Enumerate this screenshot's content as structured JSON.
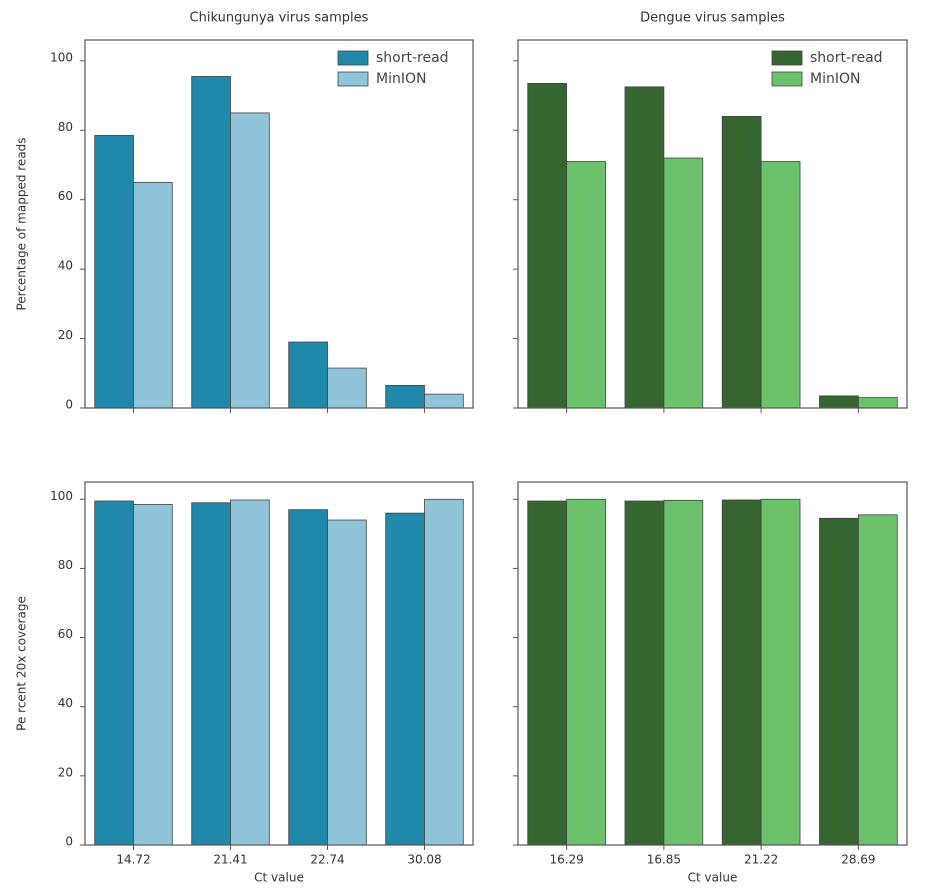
{
  "chart_data": [
    {
      "type": "bar",
      "title": "Chikungunya virus samples",
      "ylabel": "Percentage of mapped reads",
      "categories": [
        null,
        null,
        null,
        null
      ],
      "series": [
        {
          "name": "short-read",
          "color": "#1f88ab",
          "values": [
            78.5,
            95.5,
            19,
            6.5
          ]
        },
        {
          "name": "MinION",
          "color": "#8fc4d9",
          "values": [
            65,
            85,
            11.5,
            4
          ]
        }
      ],
      "ylim": [
        0,
        106
      ],
      "yticks": [
        0,
        20,
        40,
        60,
        80,
        100
      ],
      "y_tick_labels": true,
      "legend": "upper-right"
    },
    {
      "type": "bar",
      "title": "Dengue virus samples",
      "categories": [
        null,
        null,
        null,
        null
      ],
      "series": [
        {
          "name": "short-read",
          "color": "#35662f",
          "values": [
            93.5,
            92.5,
            84,
            3.5
          ]
        },
        {
          "name": "MinION",
          "color": "#6cc26b",
          "values": [
            71,
            72,
            71,
            3
          ]
        }
      ],
      "ylim": [
        0,
        106
      ],
      "yticks": [
        0,
        20,
        40,
        60,
        80,
        100
      ],
      "y_tick_labels": false,
      "legend": "upper-right"
    },
    {
      "type": "bar",
      "ylabel": "Pe rcent 20x coverage",
      "xlabel": "Ct value",
      "categories": [
        "14.72",
        "21.41",
        "22.74",
        "30.08"
      ],
      "series": [
        {
          "color": "#1f88ab",
          "values": [
            99.5,
            99,
            97,
            96
          ]
        },
        {
          "color": "#8fc4d9",
          "values": [
            98.5,
            99.8,
            94,
            100
          ]
        }
      ],
      "ylim": [
        0,
        105
      ],
      "yticks": [
        0,
        20,
        40,
        60,
        80,
        100
      ],
      "y_tick_labels": true
    },
    {
      "type": "bar",
      "xlabel": "Ct value",
      "categories": [
        "16.29",
        "16.85",
        "21.22",
        "28.69"
      ],
      "series": [
        {
          "color": "#35662f",
          "values": [
            99.5,
            99.5,
            99.8,
            94.5
          ]
        },
        {
          "color": "#6cc26b",
          "values": [
            100,
            99.7,
            100,
            95.5
          ]
        }
      ],
      "ylim": [
        0,
        105
      ],
      "yticks": [
        0,
        20,
        40,
        60,
        80,
        100
      ],
      "y_tick_labels": false
    }
  ]
}
